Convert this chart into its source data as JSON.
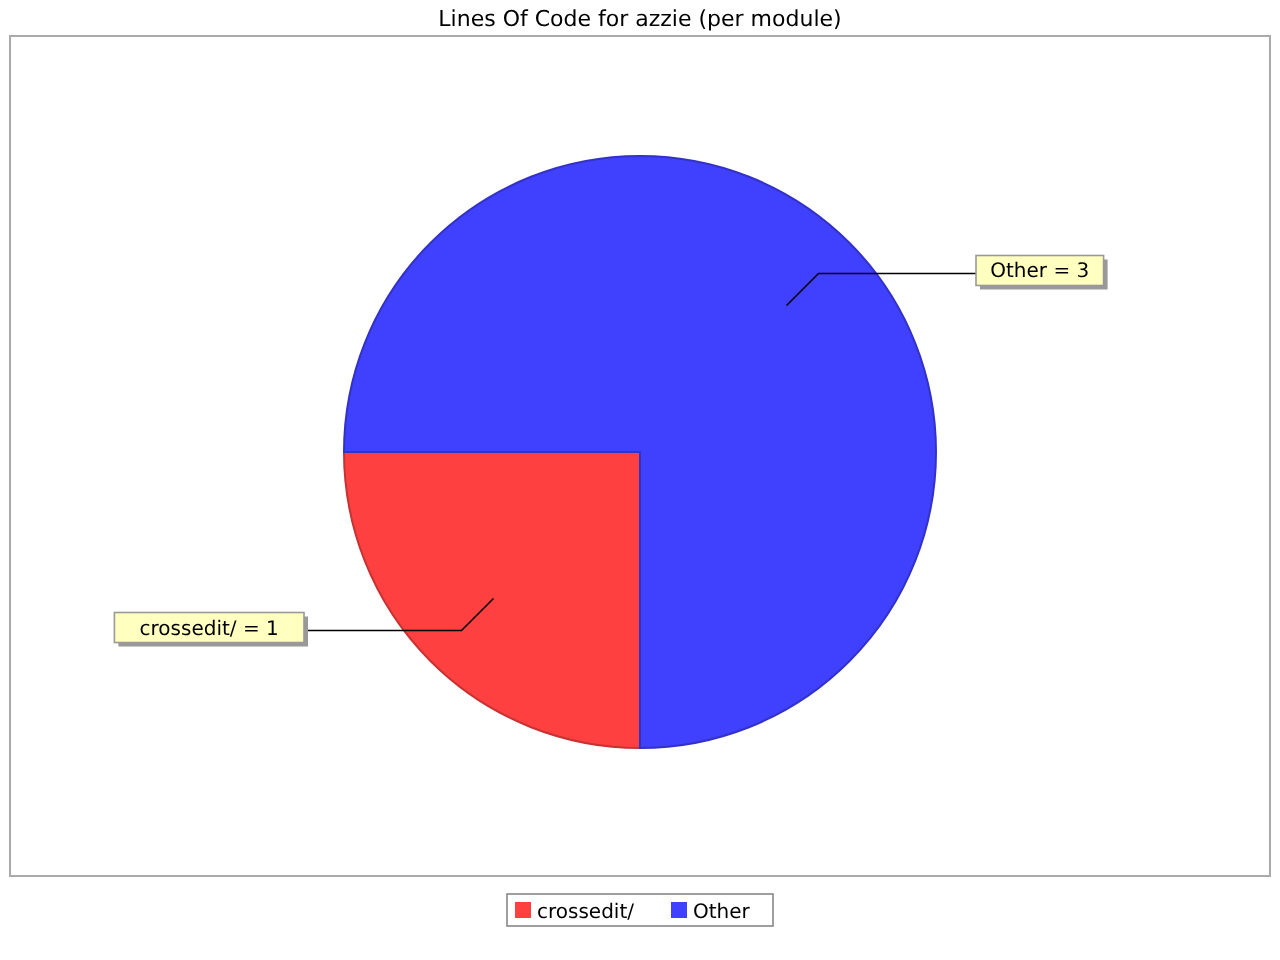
{
  "chart_data": {
    "type": "pie",
    "title": "Lines Of Code for azzie (per module)",
    "categories": [
      "crossedit/",
      "Other"
    ],
    "values": [
      1,
      3
    ],
    "colors": [
      "#ff4040",
      "#4040ff"
    ],
    "value_labels": [
      "crossedit/ = 1",
      "Other = 3"
    ],
    "legend": "bottom"
  }
}
